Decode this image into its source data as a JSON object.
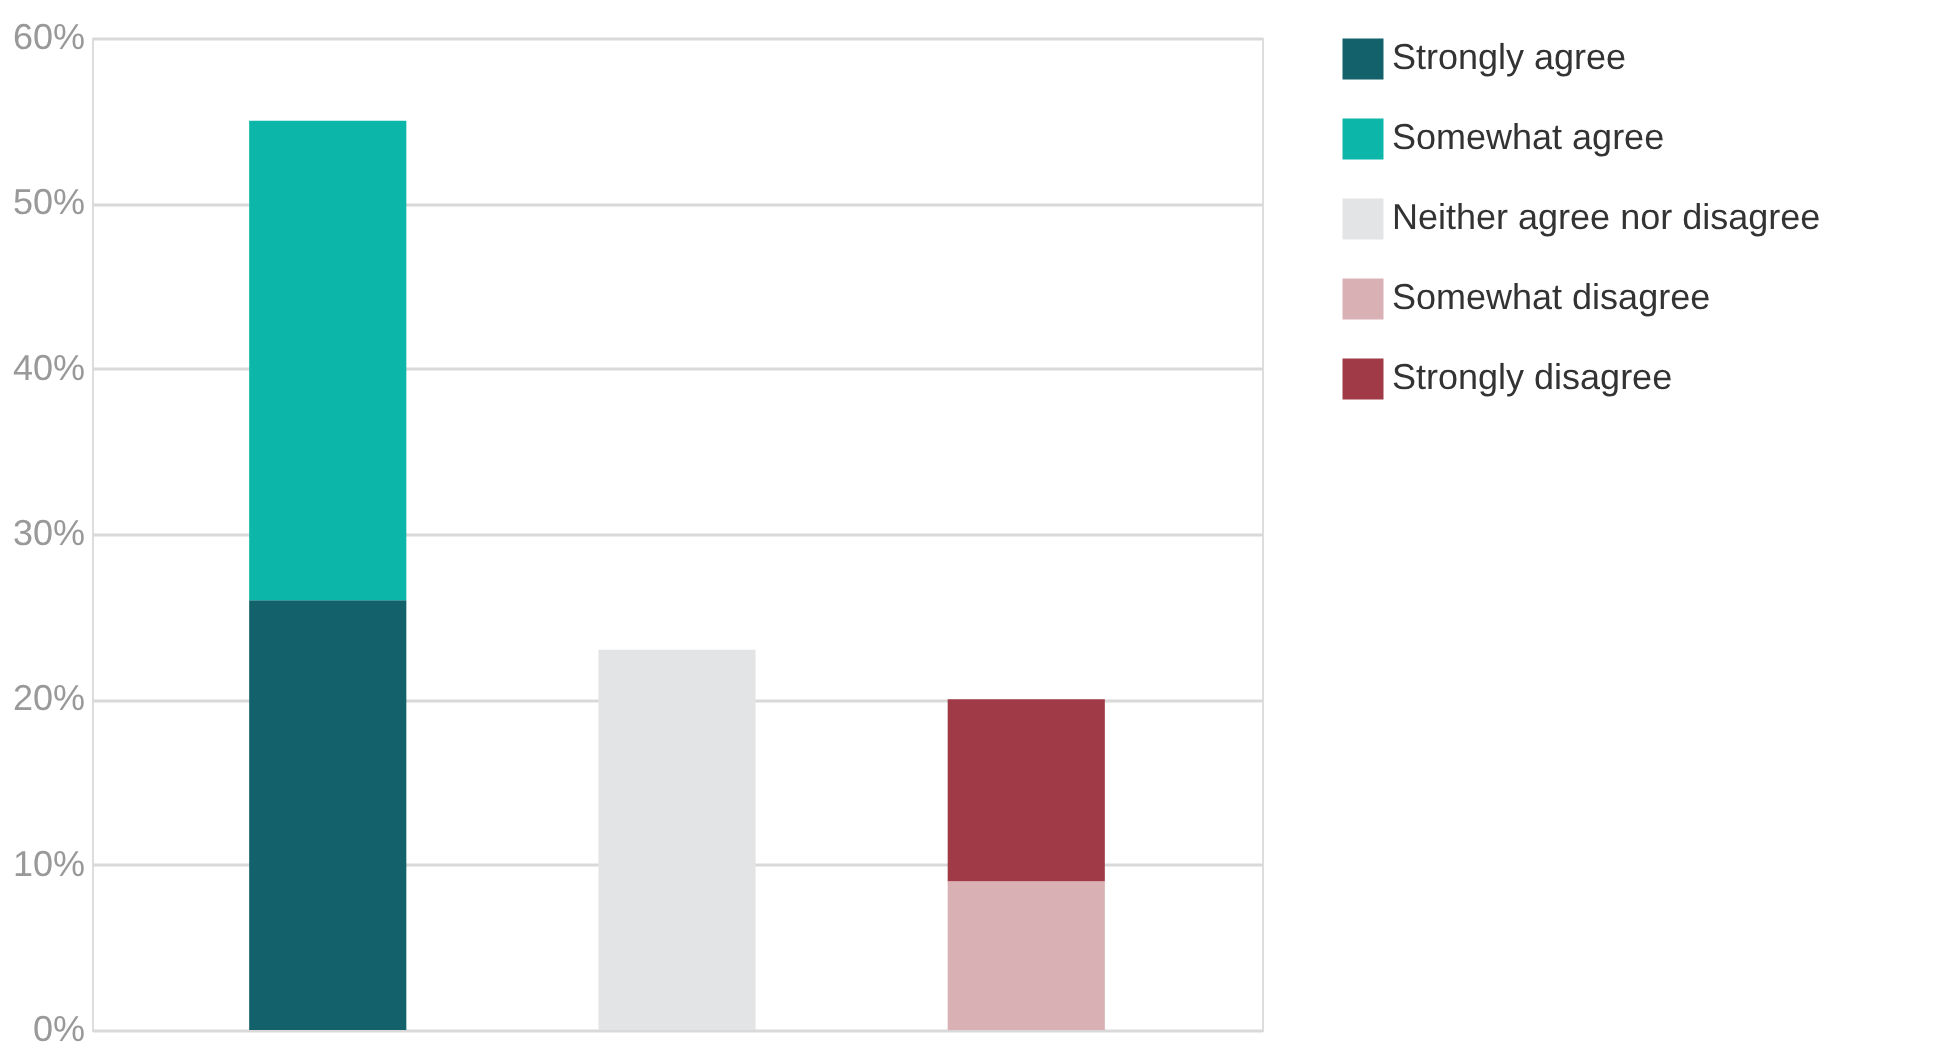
{
  "chart_data": {
    "type": "bar",
    "stacked": true,
    "categories": [
      null,
      null,
      null
    ],
    "series": [
      {
        "name": "Strongly agree",
        "color": "#12616b",
        "values": [
          26,
          null,
          null
        ]
      },
      {
        "name": "Somewhat agree",
        "color": "#0cb6a9",
        "values": [
          29,
          null,
          null
        ]
      },
      {
        "name": "Neither agree nor disagree",
        "color": "#e3e4e6",
        "values": [
          null,
          23,
          null
        ]
      },
      {
        "name": "Somewhat disagree",
        "color": "#d9b1b5",
        "values": [
          null,
          null,
          9
        ]
      },
      {
        "name": "Strongly disagree",
        "color": "#a03a47",
        "values": [
          null,
          null,
          11
        ]
      }
    ],
    "ylim": [
      0,
      60
    ],
    "yticks": [
      {
        "value": 0,
        "label": "0%"
      },
      {
        "value": 10,
        "label": "10%"
      },
      {
        "value": 20,
        "label": "20%"
      },
      {
        "value": 30,
        "label": "30%"
      },
      {
        "value": 40,
        "label": "40%"
      },
      {
        "value": 50,
        "label": "50%"
      },
      {
        "value": 60,
        "label": "60%"
      }
    ],
    "grid": "y",
    "legend": "top right",
    "tick_labels": "y"
  }
}
